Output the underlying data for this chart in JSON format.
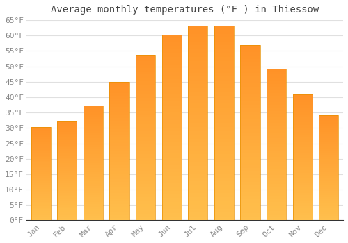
{
  "title": "Average monthly temperatures (°F ) in Thiessow",
  "months": [
    "Jan",
    "Feb",
    "Mar",
    "Apr",
    "May",
    "Jun",
    "Jul",
    "Aug",
    "Sep",
    "Oct",
    "Nov",
    "Dec"
  ],
  "values": [
    30.2,
    32.0,
    37.2,
    45.0,
    53.8,
    60.3,
    63.1,
    63.1,
    57.0,
    49.3,
    40.8,
    34.2
  ],
  "bar_color_top": "#FFA500",
  "bar_color_bottom": "#FFD060",
  "bar_edge_color": "#E89000",
  "background_color": "#FFFFFF",
  "plot_bg_color": "#FFFFFF",
  "grid_color": "#E0E0E0",
  "tick_label_color": "#888888",
  "title_color": "#444444",
  "axis_color": "#333333",
  "ylim": [
    0,
    65
  ],
  "yticks": [
    0,
    5,
    10,
    15,
    20,
    25,
    30,
    35,
    40,
    45,
    50,
    55,
    60,
    65
  ],
  "ytick_labels": [
    "0°F",
    "5°F",
    "10°F",
    "15°F",
    "20°F",
    "25°F",
    "30°F",
    "35°F",
    "40°F",
    "45°F",
    "50°F",
    "55°F",
    "60°F",
    "65°F"
  ],
  "title_fontsize": 10,
  "tick_fontsize": 8,
  "font_family": "monospace",
  "bar_width": 0.75,
  "figsize": [
    5.0,
    3.5
  ],
  "dpi": 100
}
